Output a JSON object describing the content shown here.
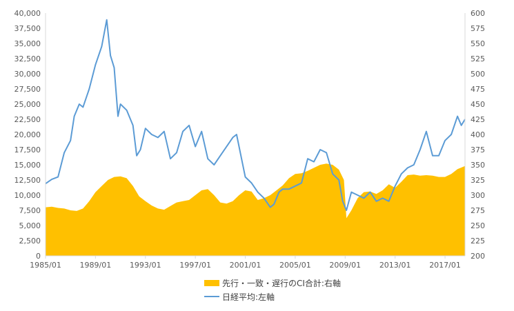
{
  "chart_data": {
    "type": "area+line",
    "x_tick_labels": [
      "1985/01",
      "1989/01",
      "1993/01",
      "1997/01",
      "2001/01",
      "2005/01",
      "2009/01",
      "2013/01",
      "2017/01"
    ],
    "x_range": [
      1985.0,
      2018.6
    ],
    "left_axis": {
      "ylim": [
        0,
        40000
      ],
      "ticks": [
        "0",
        "2,500",
        "5,000",
        "7,500",
        "10,000",
        "12,500",
        "15,000",
        "17,500",
        "20,000",
        "22,500",
        "25,000",
        "27,500",
        "30,000",
        "32,500",
        "35,000",
        "37,500",
        "40,000"
      ]
    },
    "right_axis": {
      "ylim": [
        200,
        600
      ],
      "ticks": [
        "200",
        "225",
        "250",
        "275",
        "300",
        "325",
        "350",
        "375",
        "400",
        "425",
        "450",
        "475",
        "500",
        "525",
        "550",
        "575",
        "600"
      ]
    },
    "gridlines": false,
    "colors": {
      "area": "#FFC000",
      "line": "#5B9BD5",
      "axis": "#D9D9D9"
    },
    "series": [
      {
        "name": "先行・一致・遅行のCI合計:右軸",
        "type": "area",
        "axis": "right",
        "x": [
          1985.0,
          1985.5,
          1986.0,
          1986.5,
          1987.0,
          1987.5,
          1988.0,
          1988.5,
          1989.0,
          1989.5,
          1990.0,
          1990.5,
          1991.0,
          1991.5,
          1992.0,
          1992.5,
          1993.0,
          1993.5,
          1994.0,
          1994.5,
          1995.0,
          1995.5,
          1996.0,
          1996.5,
          1997.0,
          1997.5,
          1998.0,
          1998.5,
          1999.0,
          1999.5,
          2000.0,
          2000.5,
          2001.0,
          2001.5,
          2002.0,
          2002.5,
          2003.0,
          2003.5,
          2004.0,
          2004.5,
          2005.0,
          2005.5,
          2006.0,
          2006.5,
          2007.0,
          2007.5,
          2008.0,
          2008.5,
          2008.9,
          2009.1,
          2009.5,
          2010.0,
          2010.5,
          2011.0,
          2011.5,
          2012.0,
          2012.5,
          2013.0,
          2013.5,
          2014.0,
          2014.5,
          2015.0,
          2015.5,
          2016.0,
          2016.5,
          2017.0,
          2017.5,
          2018.0,
          2018.6
        ],
        "values": [
          280,
          281,
          279,
          278,
          275,
          274,
          278,
          290,
          305,
          315,
          325,
          330,
          331,
          328,
          315,
          298,
          290,
          283,
          278,
          276,
          282,
          288,
          290,
          292,
          300,
          308,
          310,
          300,
          288,
          286,
          290,
          300,
          308,
          306,
          292,
          295,
          300,
          308,
          316,
          328,
          335,
          336,
          340,
          345,
          350,
          352,
          350,
          342,
          325,
          262,
          275,
          295,
          305,
          306,
          302,
          308,
          318,
          312,
          322,
          333,
          334,
          332,
          333,
          332,
          330,
          330,
          335,
          343,
          348
        ]
      },
      {
        "name": "日経平均:左軸",
        "type": "line",
        "axis": "left",
        "x": [
          1985.0,
          1985.5,
          1986.0,
          1986.5,
          1987.0,
          1987.3,
          1987.7,
          1988.0,
          1988.5,
          1989.0,
          1989.5,
          1989.9,
          1990.2,
          1990.5,
          1990.8,
          1991.0,
          1991.5,
          1992.0,
          1992.3,
          1992.6,
          1993.0,
          1993.5,
          1994.0,
          1994.5,
          1995.0,
          1995.5,
          1996.0,
          1996.5,
          1997.0,
          1997.5,
          1998.0,
          1998.5,
          1999.0,
          1999.5,
          2000.0,
          2000.3,
          2000.7,
          2001.0,
          2001.5,
          2002.0,
          2002.5,
          2003.0,
          2003.3,
          2003.7,
          2004.0,
          2004.5,
          2005.0,
          2005.5,
          2006.0,
          2006.5,
          2007.0,
          2007.5,
          2008.0,
          2008.5,
          2008.8,
          2009.1,
          2009.5,
          2010.0,
          2010.5,
          2011.0,
          2011.5,
          2012.0,
          2012.5,
          2013.0,
          2013.5,
          2014.0,
          2014.5,
          2015.0,
          2015.5,
          2016.0,
          2016.5,
          2017.0,
          2017.5,
          2018.0,
          2018.3,
          2018.6
        ],
        "values": [
          11900,
          12600,
          13000,
          17000,
          19000,
          23000,
          25000,
          24500,
          27500,
          31500,
          34500,
          38900,
          33000,
          31000,
          23000,
          25000,
          24000,
          21500,
          16500,
          17500,
          21000,
          20000,
          19500,
          20500,
          16000,
          17000,
          20500,
          21500,
          18000,
          20500,
          16000,
          15000,
          16500,
          18000,
          19500,
          20000,
          16000,
          13000,
          12000,
          10500,
          9500,
          8000,
          8500,
          10500,
          11000,
          11000,
          11500,
          12000,
          16000,
          15500,
          17500,
          17000,
          13500,
          12500,
          9000,
          7500,
          10500,
          10000,
          9500,
          10500,
          9000,
          9500,
          9000,
          11500,
          13500,
          14500,
          15000,
          17500,
          20500,
          16500,
          16500,
          19000,
          20000,
          23000,
          21500,
          22500
        ]
      }
    ]
  }
}
